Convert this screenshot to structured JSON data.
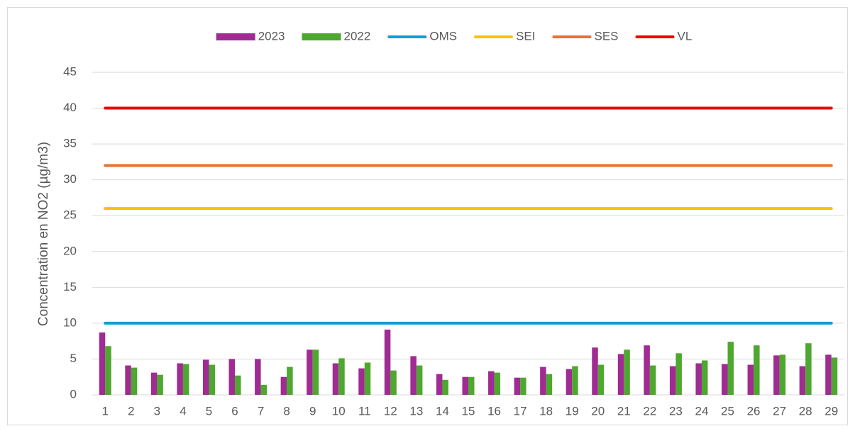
{
  "chart_data": {
    "type": "bar",
    "y_label": "Concentration en NO2 (µg/m3)",
    "categories": [
      1,
      2,
      3,
      4,
      5,
      6,
      7,
      8,
      9,
      10,
      11,
      12,
      13,
      14,
      15,
      16,
      17,
      18,
      19,
      20,
      21,
      22,
      23,
      24,
      25,
      26,
      27,
      28,
      29
    ],
    "series": [
      {
        "name": "2023",
        "type": "bar",
        "color": "#a02b93",
        "values": [
          8.7,
          4.1,
          3.1,
          4.4,
          4.9,
          5.0,
          5.0,
          2.5,
          6.3,
          4.4,
          3.7,
          9.1,
          5.4,
          2.9,
          2.5,
          3.3,
          2.4,
          3.9,
          3.6,
          6.6,
          5.7,
          6.9,
          4.0,
          4.4,
          4.3,
          4.2,
          5.5,
          4.0,
          5.6
        ]
      },
      {
        "name": "2022",
        "type": "bar",
        "color": "#4ea72e",
        "values": [
          6.8,
          3.8,
          2.8,
          4.3,
          4.2,
          2.7,
          1.4,
          3.9,
          6.3,
          5.1,
          4.5,
          3.4,
          4.1,
          2.1,
          2.5,
          3.1,
          2.4,
          2.9,
          4.0,
          4.2,
          6.3,
          4.1,
          5.8,
          4.8,
          7.4,
          6.9,
          5.6,
          7.2,
          5.2
        ]
      },
      {
        "name": "OMS",
        "type": "line",
        "color": "#0f9ed5",
        "values": [
          10,
          10,
          10,
          10,
          10,
          10,
          10,
          10,
          10,
          10,
          10,
          10,
          10,
          10,
          10,
          10,
          10,
          10,
          10,
          10,
          10,
          10,
          10,
          10,
          10,
          10,
          10,
          10,
          10
        ]
      },
      {
        "name": "SEI",
        "type": "line",
        "color": "#ffc000",
        "values": [
          26,
          26,
          26,
          26,
          26,
          26,
          26,
          26,
          26,
          26,
          26,
          26,
          26,
          26,
          26,
          26,
          26,
          26,
          26,
          26,
          26,
          26,
          26,
          26,
          26,
          26,
          26,
          26,
          26
        ]
      },
      {
        "name": "SES",
        "type": "line",
        "color": "#e97132",
        "values": [
          32,
          32,
          32,
          32,
          32,
          32,
          32,
          32,
          32,
          32,
          32,
          32,
          32,
          32,
          32,
          32,
          32,
          32,
          32,
          32,
          32,
          32,
          32,
          32,
          32,
          32,
          32,
          32,
          32
        ]
      },
      {
        "name": "VL",
        "type": "line",
        "color": "#ee0000",
        "values": [
          40,
          40,
          40,
          40,
          40,
          40,
          40,
          40,
          40,
          40,
          40,
          40,
          40,
          40,
          40,
          40,
          40,
          40,
          40,
          40,
          40,
          40,
          40,
          40,
          40,
          40,
          40,
          40,
          40
        ]
      }
    ],
    "ylim": [
      0,
      45
    ],
    "yticks": [
      0,
      5,
      10,
      15,
      20,
      25,
      30,
      35,
      40,
      45
    ],
    "grid": true,
    "legend": "top"
  }
}
